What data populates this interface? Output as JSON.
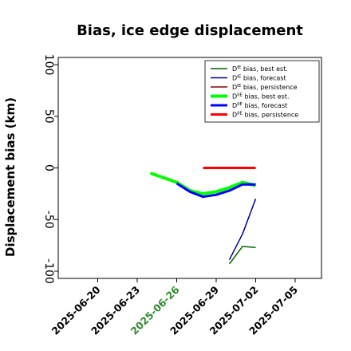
{
  "chart_data": {
    "type": "line",
    "title": "Bias, ice edge displacement",
    "ylabel": "Displacement bias (km)",
    "xlabel": "",
    "xlim": [
      "2025-06-17",
      "2025-07-07"
    ],
    "ylim": [
      -107,
      107
    ],
    "yticks": [
      100,
      50,
      0,
      -50,
      -100
    ],
    "xticks": [
      {
        "date": "2025-06-20",
        "label": "2025-06-20",
        "color": "#000000"
      },
      {
        "date": "2025-06-23",
        "label": "2025-06-23",
        "color": "#000000"
      },
      {
        "date": "2025-06-26",
        "label": "2025-06-26",
        "color": "#2e8b2e"
      },
      {
        "date": "2025-06-29",
        "label": "2025-06-29",
        "color": "#000000"
      },
      {
        "date": "2025-07-02",
        "label": "2025-07-02",
        "color": "#000000"
      },
      {
        "date": "2025-07-05",
        "label": "2025-07-05",
        "color": "#000000"
      }
    ],
    "grid": false,
    "legend_position": "top-right",
    "series": [
      {
        "name": "Dᴵᴱ bias, best est.",
        "legend_sup": "IE",
        "legend_text": " bias, best est.",
        "color": "#006400",
        "width": 1.5,
        "x": [
          "2025-06-30",
          "2025-07-01",
          "2025-07-02"
        ],
        "y": [
          -93,
          -76,
          -77
        ]
      },
      {
        "name": "Dᴵᴱ bias, forecast",
        "legend_sup": "IE",
        "legend_text": " bias, forecast",
        "color": "#00008b",
        "width": 1.5,
        "x": [
          "2025-06-30",
          "2025-07-01",
          "2025-07-02"
        ],
        "y": [
          -89,
          -64,
          -30
        ]
      },
      {
        "name": "Dᴵᴱ bias, persistence",
        "legend_sup": "IE",
        "legend_text": " bias, persistence",
        "color": "#8b0000",
        "width": 1.5,
        "x": [],
        "y": []
      },
      {
        "name": "Dᴵᴵᴱ bias, best est.",
        "legend_sup": "IIE",
        "legend_text": " bias, best est.",
        "color": "#00ff00",
        "width": 4,
        "x": [
          "2025-06-24",
          "2025-06-26",
          "2025-06-27",
          "2025-06-28",
          "2025-06-29",
          "2025-06-30",
          "2025-07-01",
          "2025-07-02"
        ],
        "y": [
          -5,
          -14,
          -22,
          -25,
          -23,
          -19,
          -14,
          -17
        ]
      },
      {
        "name": "Dᴵᴵᴱ bias, forecast",
        "legend_sup": "IIE",
        "legend_text": " bias, forecast",
        "color": "#0000ff",
        "width": 3,
        "x": [
          "2025-06-26",
          "2025-06-27",
          "2025-06-28",
          "2025-06-29",
          "2025-06-30",
          "2025-07-01",
          "2025-07-02"
        ],
        "y": [
          -15,
          -23,
          -28,
          -26,
          -22,
          -16,
          -16
        ]
      },
      {
        "name": "Dᴵᴵᴱ bias, persistence",
        "legend_sup": "IIE",
        "legend_text": " bias, persistence",
        "color": "#ff0000",
        "width": 3,
        "x": [
          "2025-06-28",
          "2025-06-29",
          "2025-06-30",
          "2025-07-01",
          "2025-07-02"
        ],
        "y": [
          0,
          0,
          0,
          0,
          0
        ]
      }
    ]
  }
}
